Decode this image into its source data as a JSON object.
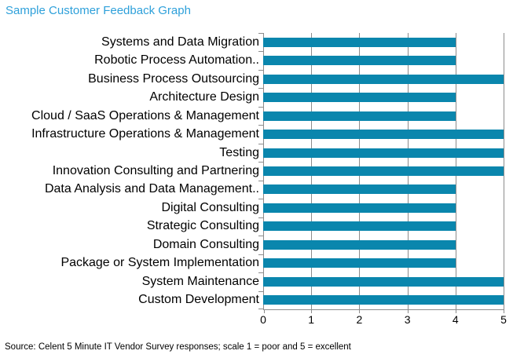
{
  "title": "Sample Customer Feedback Graph",
  "footer": "Source: Celent 5 Minute IT Vendor Survey responses; scale 1 = poor and 5 = excellent",
  "colors": {
    "bar": "#0A86AD",
    "title": "#2EA0DA",
    "axis": "#8C8C8C",
    "text": "#000000",
    "background": "#FFFFFF"
  },
  "chart_data": {
    "type": "bar",
    "orientation": "horizontal",
    "title": "Sample Customer Feedback Graph",
    "categories": [
      "Systems and Data Migration",
      "Robotic Process Automation..",
      "Business Process Outsourcing",
      "Architecture Design",
      "Cloud / SaaS Operations & Management",
      "Infrastructure Operations & Management",
      "Testing",
      "Innovation Consulting and Partnering",
      "Data Analysis and Data Management..",
      "Digital Consulting",
      "Strategic Consulting",
      "Domain Consulting",
      "Package or System Implementation",
      "System Maintenance",
      "Custom Development"
    ],
    "values": [
      4,
      4,
      5,
      4,
      4,
      5,
      5,
      5,
      4,
      4,
      4,
      4,
      4,
      5,
      5
    ],
    "xlabel": "",
    "ylabel": "",
    "xlim": [
      0,
      5
    ],
    "x_ticks": [
      "0",
      "1",
      "2",
      "3",
      "4",
      "5"
    ],
    "grid": true,
    "legend": false
  }
}
